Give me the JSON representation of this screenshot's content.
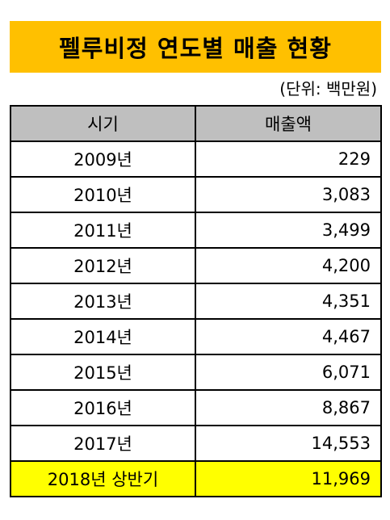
{
  "title": "펠루비정 연도별 매출 현황",
  "unit": "(단위: 백만원)",
  "colors": {
    "title_bg": "#FFC000",
    "header_bg": "#BFBFBF",
    "highlight_bg": "#FFFF00"
  },
  "table": {
    "headers": [
      "시기",
      "매출액"
    ],
    "rows": [
      {
        "period": "2009년",
        "sales": "229"
      },
      {
        "period": "2010년",
        "sales": "3,083"
      },
      {
        "period": "2011년",
        "sales": "3,499"
      },
      {
        "period": "2012년",
        "sales": "4,200"
      },
      {
        "period": "2013년",
        "sales": "4,351"
      },
      {
        "period": "2014년",
        "sales": "4,467"
      },
      {
        "period": "2015년",
        "sales": "6,071"
      },
      {
        "period": "2016년",
        "sales": "8,867"
      },
      {
        "period": "2017년",
        "sales": "14,553"
      },
      {
        "period": "2018년 상반기",
        "sales": "11,969"
      }
    ]
  }
}
